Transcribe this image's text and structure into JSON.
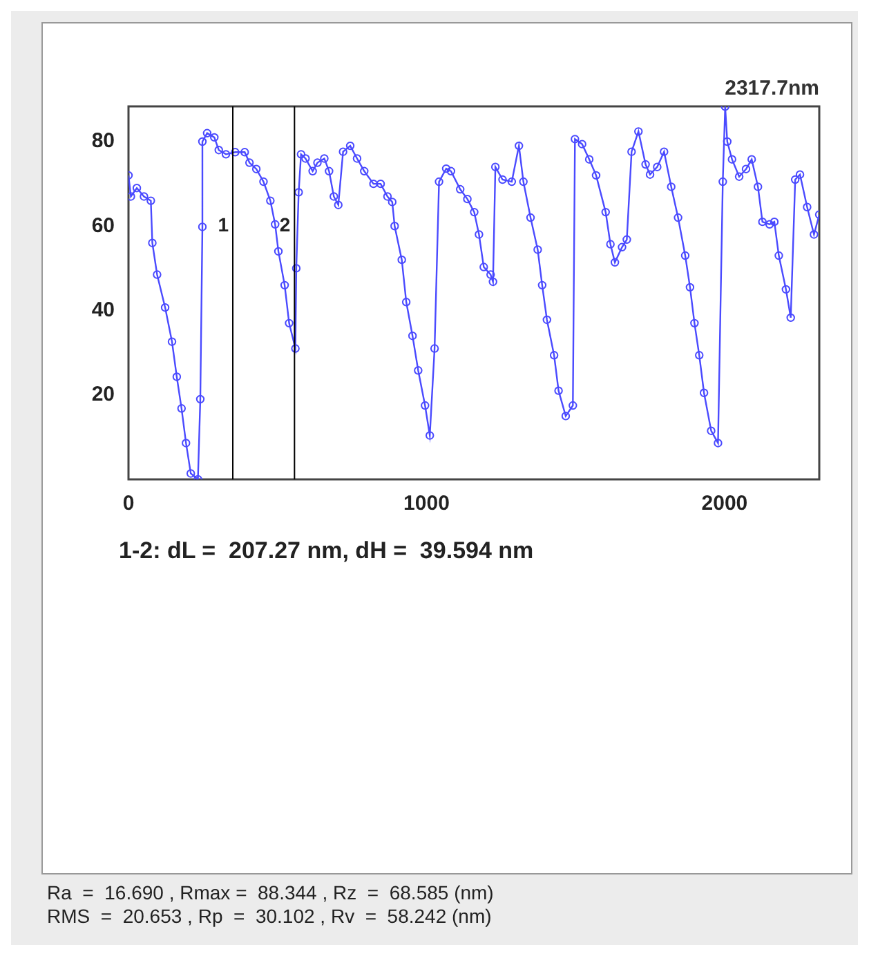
{
  "chart_data": {
    "type": "line",
    "marker": "circle",
    "line_style": "solid",
    "grid": false,
    "legend": false,
    "xlim": [
      0,
      2317.7
    ],
    "ylim": [
      0,
      88.344
    ],
    "xticks": [
      0,
      1000,
      2000
    ],
    "yticks": [
      20,
      40,
      60,
      80
    ],
    "ref_lines": [
      {
        "axis": "x",
        "value": 350,
        "color": "#000000"
      },
      {
        "axis": "x",
        "value": 557,
        "color": "#000000"
      }
    ],
    "annotations": [
      "2317.7nm",
      {
        "text": "1",
        "x": 350,
        "y": 60
      },
      {
        "text": "2",
        "x": 557,
        "y": 60
      },
      "1-2: dL =  207.27 nm, dH =  39.594 nm",
      "Ra  =  16.690 , Rmax =  88.344 , Rz  =  68.585 (nm)",
      "RMS  =  20.653 , Rp  =  30.102 , Rv  =  58.242 (nm)"
    ],
    "series": [
      {
        "color": "#4a4aff",
        "x": [
          0,
          8,
          28,
          52,
          75,
          80,
          96,
          123,
          146,
          162,
          178,
          193,
          209,
          233,
          241,
          248,
          248,
          264,
          288,
          303,
          327,
          358,
          390,
          406,
          429,
          453,
          476,
          492,
          503,
          524,
          539,
          560,
          563,
          571,
          579,
          594,
          618,
          634,
          657,
          673,
          689,
          704,
          720,
          744,
          767,
          791,
          822,
          846,
          869,
          885,
          893,
          917,
          932,
          953,
          972,
          995,
          1011,
          1027,
          1042,
          1066,
          1082,
          1113,
          1137,
          1160,
          1176,
          1192,
          1215,
          1223,
          1231,
          1255,
          1286,
          1310,
          1325,
          1349,
          1373,
          1388,
          1404,
          1428,
          1443,
          1467,
          1491,
          1498,
          1522,
          1546,
          1569,
          1601,
          1617,
          1632,
          1656,
          1672,
          1688,
          1711,
          1735,
          1750,
          1774,
          1797,
          1821,
          1844,
          1868,
          1884,
          1899,
          1915,
          1931,
          1955,
          1978,
          1994,
          2002,
          2009,
          2025,
          2049,
          2072,
          2091,
          2112,
          2127,
          2151,
          2167,
          2182,
          2206,
          2222,
          2237,
          2253,
          2277,
          2300,
          2317.7
        ],
        "values": [
          72,
          67,
          69,
          67,
          66,
          56,
          48.5,
          40.7,
          32.6,
          24.3,
          16.8,
          8.6,
          1.4,
          0,
          19,
          59.8,
          80,
          82,
          81,
          78,
          77,
          77.5,
          77.5,
          75,
          73.5,
          70.5,
          66,
          60.4,
          54,
          46,
          37,
          31,
          50,
          68,
          77,
          76,
          73,
          75,
          76,
          73,
          67,
          65,
          77.6,
          79,
          76,
          73,
          70,
          70,
          67,
          65.7,
          60,
          52,
          42,
          34,
          25.8,
          17.5,
          10.4,
          31,
          70.5,
          73.6,
          73,
          68.7,
          66.4,
          63.3,
          58,
          50.3,
          48.5,
          46.8,
          74,
          71,
          70.5,
          79,
          70.5,
          62,
          54.4,
          46,
          37.8,
          29.4,
          21,
          15,
          17.5,
          80.6,
          79.4,
          75.8,
          72,
          63.3,
          55.7,
          51.4,
          55,
          56.8,
          77.6,
          82.4,
          74.6,
          72.2,
          74,
          77.6,
          69.3,
          62,
          53,
          45.5,
          37,
          29.4,
          20.5,
          11.5,
          8.6,
          70.5,
          88.3,
          80,
          75.8,
          71.7,
          73.5,
          75.8,
          69.3,
          61,
          60.4,
          61,
          53,
          45,
          38.3,
          71,
          72.2,
          64.5,
          58,
          62.7
        ]
      }
    ]
  }
}
